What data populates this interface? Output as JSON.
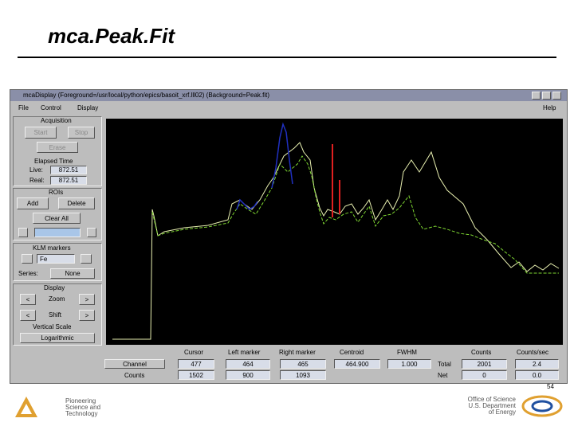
{
  "slide": {
    "title": "mca.Peak.Fit",
    "page_number": "54"
  },
  "window": {
    "title": "mcaDisplay (Foreground=/usr/local/python/epics/basoit_xrf.lll02) (Background=Peak.fit)",
    "menu": [
      "File",
      "Control",
      "Display"
    ],
    "help": "Help"
  },
  "acquisition": {
    "label": "Acquisition",
    "start": "Start",
    "stop": "Stop",
    "erase": "Erase",
    "elapsed_time": "Elapsed Time",
    "live_label": "Live:",
    "live": "872.51",
    "real_label": "Real:",
    "real": "872.51"
  },
  "rois": {
    "label": "ROIs",
    "add": "Add",
    "delete": "Delete",
    "clear_all": "Clear All"
  },
  "klm": {
    "label": "KLM markers",
    "element": "Fe",
    "series_label": "Series:",
    "series": "None"
  },
  "display": {
    "label": "Display",
    "left": "<",
    "right": ">",
    "zoom": "Zoom",
    "shift": "Shift",
    "vertical_scale": "Vertical Scale",
    "scale": "Logarithmic"
  },
  "table": {
    "headers": [
      "Cursor",
      "Left marker",
      "Right marker",
      "Centroid",
      "FWHM",
      "Counts",
      "Counts/sec"
    ],
    "rows": [
      [
        "Channel",
        "477",
        "464",
        "465",
        "464.900",
        "1.000",
        "Total",
        "2001",
        "2.4"
      ],
      [
        "Counts",
        "1502",
        "900",
        "1093",
        "Net",
        "0",
        "0.0"
      ]
    ]
  },
  "footer": {
    "left": [
      "Pioneering",
      "Science and",
      "Technology"
    ],
    "right": [
      "Office of Science",
      "U.S. Department",
      "of Energy"
    ]
  }
}
